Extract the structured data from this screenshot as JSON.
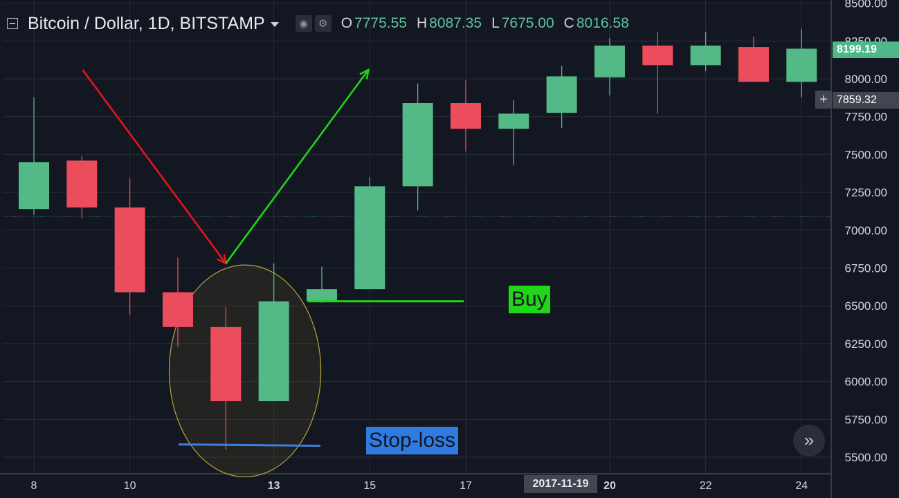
{
  "header": {
    "symbol_title": "Bitcoin / Dollar, 1D, BITSTAMP",
    "settings_icons": [
      "eye-icon",
      "gear-icon"
    ],
    "ohlc": [
      {
        "key": "O",
        "value": "7775.55"
      },
      {
        "key": "H",
        "value": "8087.35"
      },
      {
        "key": "L",
        "value": "7675.00"
      },
      {
        "key": "C",
        "value": "8016.58"
      }
    ]
  },
  "price_scale": {
    "last_price": "8199.19",
    "cursor_price": "7859.32"
  },
  "time_scale": {
    "cursor_date": "2017-11-19"
  },
  "annotations": {
    "buy_label": "Buy",
    "stop_loss_label": "Stop-loss"
  },
  "colors": {
    "background": "#131722",
    "up_candle": "#53b987",
    "down_candle": "#eb4d5c",
    "grid": "#2a2e39",
    "down_arrow": "#e8141a",
    "up_arrow": "#22d41a",
    "buy_line": "#22d41a",
    "stop_line": "#3c7fe0",
    "highlight_ellipse": "#b7a436"
  },
  "chart_data": {
    "type": "candlestick",
    "ylim": [
      5400,
      8500
    ],
    "x_ticks": [
      {
        "label": "8",
        "x": 8
      },
      {
        "label": "10",
        "x": 10
      },
      {
        "label": "13",
        "x": 13,
        "bold": true
      },
      {
        "label": "15",
        "x": 15
      },
      {
        "label": "17",
        "x": 17
      },
      {
        "label": "20",
        "x": 20,
        "bold": true
      },
      {
        "label": "22",
        "x": 22
      },
      {
        "label": "24",
        "x": 24
      }
    ],
    "y_ticks": [
      "5500.00",
      "5750.00",
      "6000.00",
      "6250.00",
      "6500.00",
      "6750.00",
      "7000.00",
      "7250.00",
      "7500.00",
      "7750.00",
      "8000.00",
      "8250.00",
      "8500.00"
    ],
    "candles": [
      {
        "day": 8,
        "open": 7140,
        "high": 7880,
        "low": 7100,
        "close": 7450
      },
      {
        "day": 9,
        "open": 7460,
        "high": 7490,
        "low": 7080,
        "close": 7150
      },
      {
        "day": 10,
        "open": 7150,
        "high": 7340,
        "low": 6440,
        "close": 6590
      },
      {
        "day": 11,
        "open": 6590,
        "high": 6820,
        "low": 6230,
        "close": 6360
      },
      {
        "day": 12,
        "open": 6360,
        "high": 6490,
        "low": 5550,
        "close": 5870
      },
      {
        "day": 13,
        "open": 5870,
        "high": 6780,
        "low": 5870,
        "close": 6530
      },
      {
        "day": 14,
        "open": 6530,
        "high": 6760,
        "low": 6520,
        "close": 6610
      },
      {
        "day": 15,
        "open": 6610,
        "high": 7350,
        "low": 6610,
        "close": 7290
      },
      {
        "day": 16,
        "open": 7290,
        "high": 7970,
        "low": 7130,
        "close": 7840
      },
      {
        "day": 17,
        "open": 7840,
        "high": 7990,
        "low": 7520,
        "close": 7670
      },
      {
        "day": 18,
        "open": 7670,
        "high": 7860,
        "low": 7430,
        "close": 7770
      },
      {
        "day": 19,
        "open": 7775.55,
        "high": 8087.35,
        "low": 7675,
        "close": 8016.58
      },
      {
        "day": 20,
        "open": 8010,
        "high": 8270,
        "low": 7890,
        "close": 8220
      },
      {
        "day": 21,
        "open": 8220,
        "high": 8310,
        "low": 7770,
        "close": 8090
      },
      {
        "day": 22,
        "open": 8090,
        "high": 8310,
        "low": 8050,
        "close": 8220
      },
      {
        "day": 23,
        "open": 8210,
        "high": 8280,
        "low": 7980,
        "close": 7980
      },
      {
        "day": 24,
        "open": 7980,
        "high": 8330,
        "low": 7880,
        "close": 8199.19
      }
    ],
    "dotted_level": 7090,
    "buy_level": 6530,
    "stop_loss_level": 5580,
    "down_arrow": {
      "from": {
        "day": 9,
        "price": 8060
      },
      "to": {
        "day": 12,
        "price": 6780
      }
    },
    "up_arrow": {
      "from": {
        "day": 12,
        "price": 6780
      },
      "to": {
        "day": 15,
        "price": 8060
      }
    },
    "highlight_ellipse": {
      "center_day": 12.4,
      "center_price": 6070,
      "half_width_days": 1.58,
      "half_height_price": 700
    }
  }
}
